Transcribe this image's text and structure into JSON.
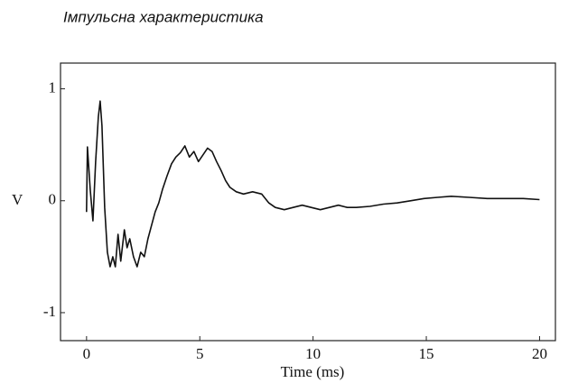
{
  "chart_data": {
    "type": "line",
    "title": "Імпульсна характеристика",
    "x_label": "Time (ms)",
    "y_label": "V",
    "x": [
      0,
      0.04,
      0.16,
      0.28,
      0.4,
      0.52,
      0.6,
      0.68,
      0.8,
      0.92,
      1.04,
      1.16,
      1.27,
      1.39,
      1.51,
      1.67,
      1.79,
      1.91,
      2.07,
      2.23,
      2.39,
      2.55,
      2.71,
      2.87,
      3.03,
      3.19,
      3.35,
      3.55,
      3.75,
      3.94,
      4.14,
      4.34,
      4.54,
      4.74,
      4.94,
      5.14,
      5.34,
      5.54,
      5.74,
      5.94,
      6.14,
      6.33,
      6.61,
      6.93,
      7.33,
      7.73,
      8.05,
      8.33,
      8.73,
      9.12,
      9.52,
      9.92,
      10.32,
      10.72,
      11.12,
      11.51,
      11.91,
      12.51,
      13.11,
      13.71,
      14.3,
      14.9,
      15.5,
      16.1,
      16.89,
      17.69,
      18.49,
      19.28,
      20
    ],
    "values": [
      -0.1,
      0.48,
      0.1,
      -0.18,
      0.35,
      0.75,
      0.89,
      0.67,
      -0.06,
      -0.46,
      -0.59,
      -0.5,
      -0.59,
      -0.3,
      -0.54,
      -0.26,
      -0.42,
      -0.34,
      -0.5,
      -0.59,
      -0.46,
      -0.5,
      -0.34,
      -0.22,
      -0.1,
      -0.02,
      0.1,
      0.22,
      0.33,
      0.39,
      0.43,
      0.49,
      0.39,
      0.44,
      0.35,
      0.41,
      0.47,
      0.44,
      0.35,
      0.27,
      0.18,
      0.12,
      0.08,
      0.06,
      0.08,
      0.06,
      -0.02,
      -0.06,
      -0.08,
      -0.06,
      -0.04,
      -0.06,
      -0.08,
      -0.06,
      -0.04,
      -0.06,
      -0.06,
      -0.05,
      -0.03,
      -0.02,
      0,
      0.02,
      0.03,
      0.04,
      0.03,
      0.02,
      0.02,
      0.02,
      0.01
    ],
    "color": "#111111",
    "xlim": [
      -1.15,
      20.7
    ],
    "xticks": [
      0,
      5,
      10,
      15,
      20
    ],
    "ylim": [
      -1.25,
      1.23
    ],
    "yticks": [
      1,
      0,
      -1
    ]
  }
}
